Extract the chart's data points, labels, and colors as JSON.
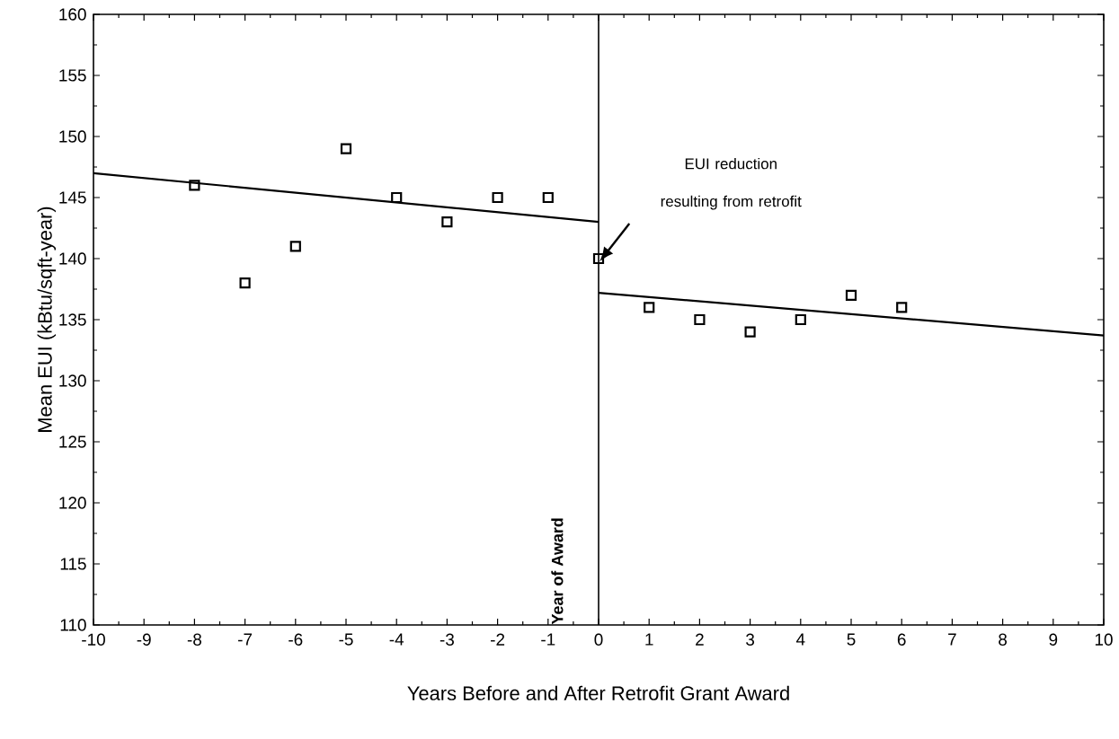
{
  "chart_data": {
    "type": "scatter",
    "xlabel": "Years Before and After Retrofit Grant Award",
    "ylabel": "Mean EUI (kBtu/sqft-year)",
    "xlim": [
      -10,
      10
    ],
    "ylim": [
      110,
      160
    ],
    "xticks": [
      -10,
      -9,
      -8,
      -7,
      -6,
      -5,
      -4,
      -3,
      -2,
      -1,
      0,
      1,
      2,
      3,
      4,
      5,
      6,
      7,
      8,
      9,
      10
    ],
    "yticks": [
      110,
      115,
      120,
      125,
      130,
      135,
      140,
      145,
      150,
      155,
      160
    ],
    "grid": false,
    "marker": "square",
    "series": [
      {
        "color": "#000000",
        "x": [
          -8,
          -7,
          -6,
          -5,
          -4,
          -3,
          -2,
          -1,
          0,
          1,
          2,
          3,
          4,
          5,
          6
        ],
        "values": [
          146,
          138,
          141,
          149,
          145,
          143,
          145,
          145,
          140,
          136,
          135,
          134,
          135,
          137,
          136
        ]
      },
      {
        "type": "line",
        "marker": "none",
        "color": "#000000",
        "x": [
          -10,
          0
        ],
        "values": [
          147,
          143
        ]
      },
      {
        "type": "line",
        "marker": "none",
        "color": "#000000",
        "x": [
          0,
          10
        ],
        "values": [
          137.2,
          133.7
        ]
      }
    ],
    "ref_lines": [
      {
        "axis": "x",
        "value": 0,
        "label": "Year of Award"
      }
    ],
    "annotations": [
      "EUI reduction resulting from retrofit"
    ]
  }
}
